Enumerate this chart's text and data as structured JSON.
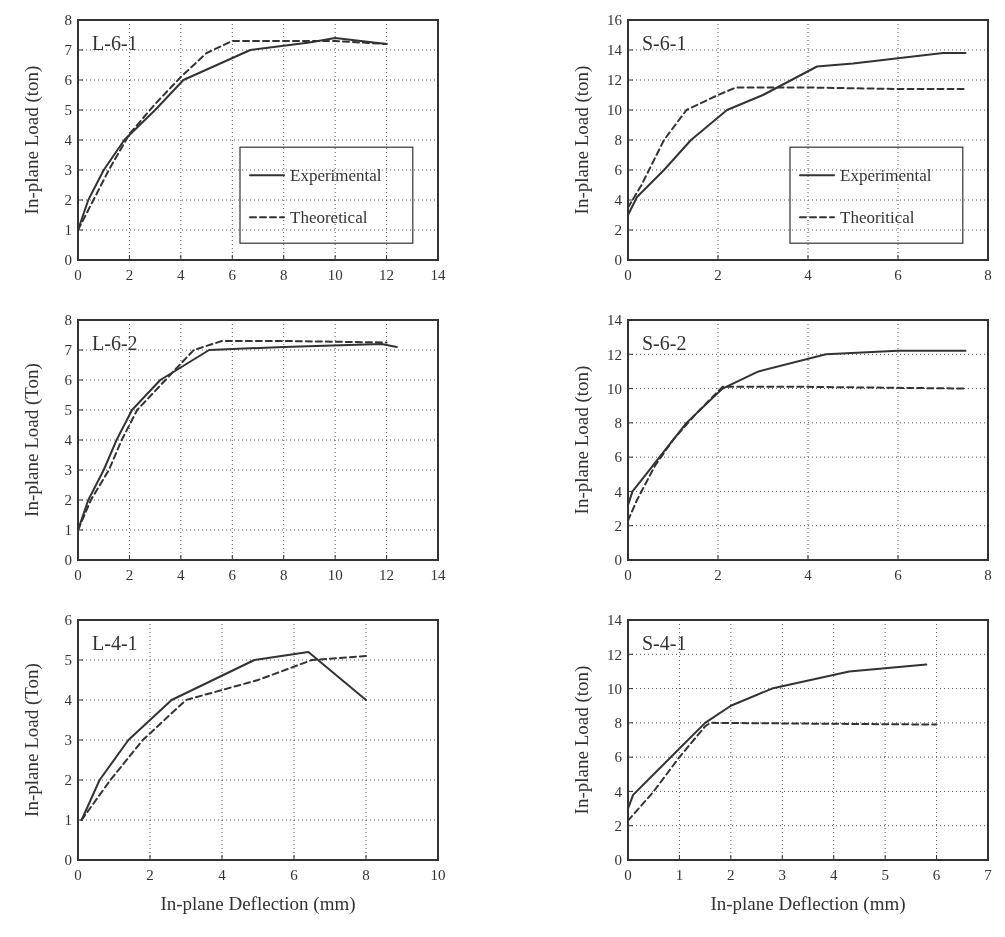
{
  "chart_data": [
    {
      "type": "line",
      "title": "L-6-1",
      "ylabel": "In-plane Load (ton)",
      "xlim": [
        0,
        14
      ],
      "xticks": [
        0,
        2,
        4,
        6,
        8,
        10,
        12,
        14
      ],
      "ylim": [
        0,
        8
      ],
      "yticks": [
        0,
        1,
        2,
        3,
        4,
        5,
        6,
        7,
        8
      ],
      "grid": true,
      "legend": "bottom right",
      "series": [
        {
          "name": "Experimental",
          "color": "#333333",
          "line_style": "solid",
          "x": [
            0,
            0.4,
            1,
            1.8,
            3,
            4.1,
            6.7,
            9,
            10,
            12
          ],
          "values": [
            1,
            2,
            3,
            4,
            5,
            6,
            7,
            7.25,
            7.4,
            7.2
          ]
        },
        {
          "name": "Theoretical",
          "color": "#333333",
          "line_style": "dashed",
          "x": [
            0,
            0.6,
            1.2,
            2,
            3,
            4,
            5,
            6,
            8,
            10,
            12
          ],
          "values": [
            1,
            2,
            3,
            4.2,
            5.2,
            6.1,
            6.9,
            7.3,
            7.3,
            7.3,
            7.2
          ]
        }
      ]
    },
    {
      "type": "line",
      "title": "S-6-1",
      "ylabel": "In-plane Load (ton)",
      "xlim": [
        0,
        8
      ],
      "xticks": [
        0,
        2,
        4,
        6,
        8
      ],
      "ylim": [
        0,
        16
      ],
      "yticks": [
        0,
        2,
        4,
        6,
        8,
        10,
        12,
        14,
        16
      ],
      "grid": true,
      "legend": "bottom right",
      "series": [
        {
          "name": "Experimental",
          "color": "#333333",
          "line_style": "solid",
          "x": [
            0,
            0.2,
            0.8,
            1.4,
            2.2,
            3,
            4.2,
            5,
            7,
            7.5
          ],
          "values": [
            3,
            4.2,
            6,
            8,
            10,
            11,
            12.9,
            13.1,
            13.8,
            13.8
          ]
        },
        {
          "name": "Theoritical",
          "color": "#333333",
          "line_style": "dashed",
          "x": [
            0,
            0.3,
            0.8,
            1.3,
            2,
            2.4,
            4,
            6,
            7.5
          ],
          "values": [
            3.5,
            5,
            8,
            10,
            11,
            11.5,
            11.5,
            11.4,
            11.4
          ]
        }
      ]
    },
    {
      "type": "line",
      "title": "L-6-2",
      "ylabel": "In-plane Load (Ton)",
      "xlim": [
        0,
        14
      ],
      "xticks": [
        0,
        2,
        4,
        6,
        8,
        10,
        12,
        14
      ],
      "ylim": [
        0,
        8
      ],
      "yticks": [
        0,
        1,
        2,
        3,
        4,
        5,
        6,
        7,
        8
      ],
      "grid": true,
      "series": [
        {
          "color": "#333333",
          "line_style": "solid",
          "x": [
            0,
            0.4,
            1,
            1.5,
            2.1,
            3.2,
            5.1,
            8,
            11.8,
            12.4
          ],
          "values": [
            1,
            2,
            3,
            4,
            5,
            6,
            7,
            7.1,
            7.2,
            7.1
          ]
        },
        {
          "color": "#333333",
          "line_style": "dashed",
          "x": [
            0,
            0.5,
            1.2,
            1.7,
            2.3,
            3.4,
            4.5,
            5.6,
            8,
            12
          ],
          "values": [
            1,
            2,
            3,
            4,
            5,
            6,
            7,
            7.3,
            7.3,
            7.25
          ]
        }
      ]
    },
    {
      "type": "line",
      "title": "S-6-2",
      "ylabel": "In-plane Load (ton)",
      "xlim": [
        0,
        8
      ],
      "xticks": [
        0,
        2,
        4,
        6,
        8
      ],
      "ylim": [
        0,
        14
      ],
      "yticks": [
        0,
        2,
        4,
        6,
        8,
        10,
        12,
        14
      ],
      "grid": true,
      "series": [
        {
          "color": "#333333",
          "line_style": "solid",
          "x": [
            0,
            0.1,
            0.4,
            0.7,
            1.3,
            2.1,
            2.9,
            4.4,
            6,
            7.5
          ],
          "values": [
            3.2,
            4,
            5,
            6,
            8,
            10,
            11,
            12,
            12.2,
            12.2
          ]
        },
        {
          "color": "#333333",
          "line_style": "dashed",
          "x": [
            0,
            0.2,
            0.6,
            1,
            1.5,
            2.1,
            4,
            7.5
          ],
          "values": [
            2.3,
            3.5,
            5.5,
            7,
            8.5,
            10.1,
            10.1,
            10
          ]
        }
      ]
    },
    {
      "type": "line",
      "title": "L-4-1",
      "xlabel": "In-plane Deflection (mm)",
      "ylabel": "In-plane Load (Ton)",
      "xlim": [
        0,
        10
      ],
      "xticks": [
        0,
        2,
        4,
        6,
        8,
        10
      ],
      "ylim": [
        0,
        6
      ],
      "yticks": [
        0,
        1,
        2,
        3,
        4,
        5,
        6
      ],
      "grid": true,
      "series": [
        {
          "color": "#333333",
          "line_style": "solid",
          "x": [
            0.1,
            0.6,
            1.4,
            2.6,
            4.9,
            6.4,
            8
          ],
          "values": [
            1,
            2,
            3,
            4,
            5,
            5.2,
            4
          ]
        },
        {
          "color": "#333333",
          "line_style": "dashed",
          "x": [
            0.1,
            0.9,
            1.8,
            3,
            5,
            6.5,
            8
          ],
          "values": [
            1,
            2,
            3,
            4,
            4.5,
            5,
            5.1
          ]
        }
      ]
    },
    {
      "type": "line",
      "title": "S-4-1",
      "xlabel": "In-plane Deflection (mm)",
      "ylabel": "In-plane Load (ton)",
      "xlim": [
        0,
        7
      ],
      "xticks": [
        0,
        1,
        2,
        3,
        4,
        5,
        6,
        7
      ],
      "ylim": [
        0,
        14
      ],
      "yticks": [
        0,
        2,
        4,
        6,
        8,
        10,
        12,
        14
      ],
      "grid": true,
      "series": [
        {
          "color": "#333333",
          "line_style": "solid",
          "x": [
            0,
            0.1,
            0.5,
            1,
            1.5,
            2,
            2.8,
            4.3,
            5.8
          ],
          "values": [
            3,
            3.8,
            5,
            6.5,
            8,
            9,
            10,
            11,
            11.4
          ]
        },
        {
          "color": "#333333",
          "line_style": "dashed",
          "x": [
            0,
            0.5,
            1,
            1.5,
            1.6,
            6
          ],
          "values": [
            2.3,
            4,
            6,
            7.8,
            8,
            7.9
          ]
        }
      ]
    }
  ]
}
